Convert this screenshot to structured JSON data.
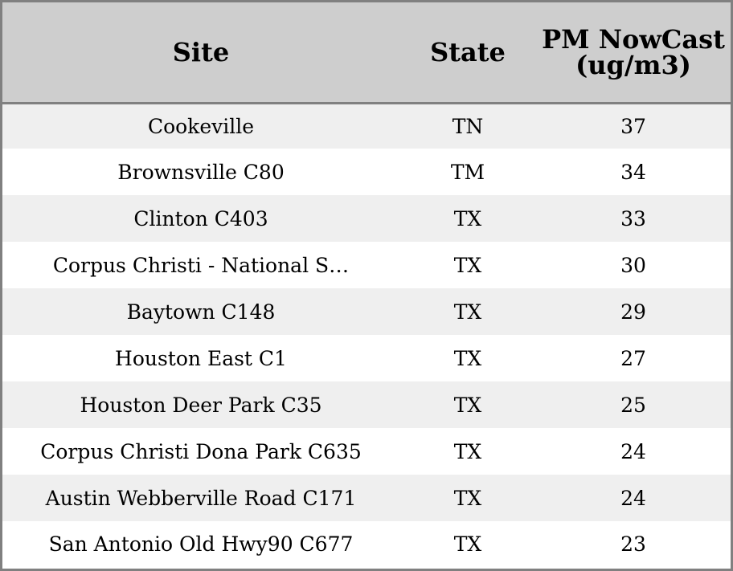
{
  "chart_data": {
    "type": "table",
    "columns": [
      "Site",
      "State",
      "PM NowCast (ug/m3)"
    ],
    "rows": [
      {
        "site": "Cookeville",
        "state": "TN",
        "pm": "37"
      },
      {
        "site": "Brownsville C80",
        "state": "TM",
        "pm": "34"
      },
      {
        "site": "Clinton C403",
        "state": "TX",
        "pm": "33"
      },
      {
        "site": "Corpus Christi - National S…",
        "state": "TX",
        "pm": "30"
      },
      {
        "site": "Baytown C148",
        "state": "TX",
        "pm": "29"
      },
      {
        "site": "Houston East C1",
        "state": "TX",
        "pm": "27"
      },
      {
        "site": "Houston Deer Park C35",
        "state": "TX",
        "pm": "25"
      },
      {
        "site": "Corpus Christi Dona Park C635",
        "state": "TX",
        "pm": "24"
      },
      {
        "site": "Austin Webberville Road C171",
        "state": "TX",
        "pm": "24"
      },
      {
        "site": "San Antonio Old Hwy90 C677",
        "state": "TX",
        "pm": "23"
      }
    ]
  },
  "colors": {
    "header_bg": "#cecece",
    "row_alt_bg": "#efefef",
    "row_bg": "#ffffff",
    "border": "#808080"
  }
}
